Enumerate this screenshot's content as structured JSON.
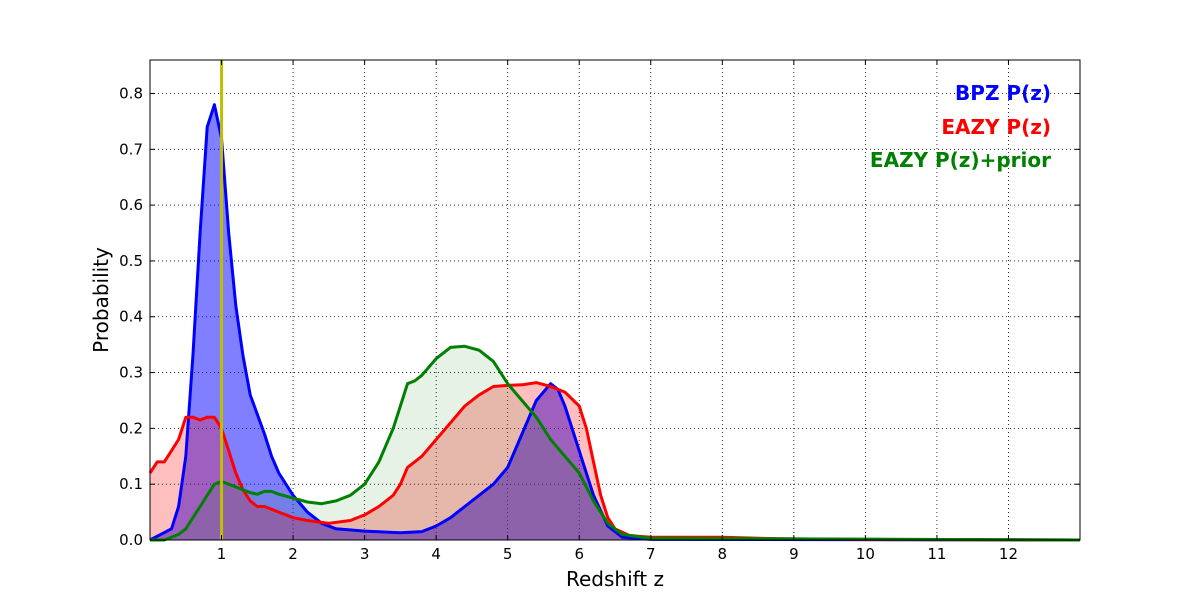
{
  "chart_data": {
    "type": "area",
    "title": "",
    "xlabel": "Redshift z",
    "ylabel": "Probability",
    "xlim": [
      0,
      13
    ],
    "ylim": [
      0,
      0.86
    ],
    "grid": true,
    "grid_style": "dotted",
    "legend_placement": "top-right",
    "x_ticks": [
      1,
      2,
      3,
      4,
      5,
      6,
      7,
      8,
      9,
      10,
      11,
      12
    ],
    "y_ticks": [
      0.0,
      0.1,
      0.2,
      0.3,
      0.4,
      0.5,
      0.6,
      0.7,
      0.8
    ],
    "x_tick_labels": [
      "1",
      "2",
      "3",
      "4",
      "5",
      "6",
      "7",
      "8",
      "9",
      "10",
      "11",
      "12"
    ],
    "y_tick_labels": [
      "0.0",
      "0.1",
      "0.2",
      "0.3",
      "0.4",
      "0.5",
      "0.6",
      "0.7",
      "0.8"
    ],
    "vertical_marker": {
      "x": 1.0,
      "color": "#bfbf00"
    },
    "series": [
      {
        "name": "BPZ P(z)",
        "color": "#0000ff",
        "fill_opacity": 0.5,
        "points": [
          [
            0,
            0
          ],
          [
            0.3,
            0.02
          ],
          [
            0.4,
            0.06
          ],
          [
            0.5,
            0.15
          ],
          [
            0.6,
            0.33
          ],
          [
            0.7,
            0.55
          ],
          [
            0.8,
            0.74
          ],
          [
            0.9,
            0.78
          ],
          [
            1.0,
            0.72
          ],
          [
            1.1,
            0.55
          ],
          [
            1.2,
            0.42
          ],
          [
            1.3,
            0.33
          ],
          [
            1.4,
            0.26
          ],
          [
            1.6,
            0.19
          ],
          [
            1.7,
            0.15
          ],
          [
            1.8,
            0.12
          ],
          [
            2.0,
            0.08
          ],
          [
            2.2,
            0.05
          ],
          [
            2.4,
            0.03
          ],
          [
            2.6,
            0.02
          ],
          [
            3.0,
            0.016
          ],
          [
            3.5,
            0.013
          ],
          [
            3.8,
            0.015
          ],
          [
            4.0,
            0.025
          ],
          [
            4.2,
            0.04
          ],
          [
            4.4,
            0.06
          ],
          [
            4.6,
            0.08
          ],
          [
            4.8,
            0.1
          ],
          [
            5.0,
            0.13
          ],
          [
            5.2,
            0.19
          ],
          [
            5.4,
            0.25
          ],
          [
            5.6,
            0.28
          ],
          [
            5.7,
            0.27
          ],
          [
            5.8,
            0.24
          ],
          [
            6.0,
            0.16
          ],
          [
            6.2,
            0.08
          ],
          [
            6.4,
            0.025
          ],
          [
            6.6,
            0.005
          ],
          [
            7.0,
            0.001
          ],
          [
            13,
            0
          ]
        ]
      },
      {
        "name": "EAZY P(z)",
        "color": "#ff0000",
        "fill_opacity": 0.25,
        "points": [
          [
            0,
            0.12
          ],
          [
            0.1,
            0.14
          ],
          [
            0.2,
            0.14
          ],
          [
            0.3,
            0.16
          ],
          [
            0.4,
            0.18
          ],
          [
            0.5,
            0.22
          ],
          [
            0.6,
            0.22
          ],
          [
            0.7,
            0.215
          ],
          [
            0.8,
            0.22
          ],
          [
            0.9,
            0.22
          ],
          [
            1.0,
            0.2
          ],
          [
            1.1,
            0.16
          ],
          [
            1.2,
            0.12
          ],
          [
            1.3,
            0.09
          ],
          [
            1.4,
            0.07
          ],
          [
            1.5,
            0.06
          ],
          [
            1.6,
            0.06
          ],
          [
            1.8,
            0.05
          ],
          [
            2.0,
            0.04
          ],
          [
            2.2,
            0.035
          ],
          [
            2.5,
            0.03
          ],
          [
            2.8,
            0.035
          ],
          [
            3.0,
            0.045
          ],
          [
            3.2,
            0.06
          ],
          [
            3.4,
            0.08
          ],
          [
            3.5,
            0.1
          ],
          [
            3.6,
            0.13
          ],
          [
            3.8,
            0.15
          ],
          [
            4.0,
            0.18
          ],
          [
            4.2,
            0.21
          ],
          [
            4.4,
            0.24
          ],
          [
            4.6,
            0.26
          ],
          [
            4.8,
            0.275
          ],
          [
            5.0,
            0.277
          ],
          [
            5.2,
            0.278
          ],
          [
            5.4,
            0.282
          ],
          [
            5.6,
            0.275
          ],
          [
            5.8,
            0.265
          ],
          [
            6.0,
            0.24
          ],
          [
            6.1,
            0.2
          ],
          [
            6.2,
            0.14
          ],
          [
            6.3,
            0.08
          ],
          [
            6.4,
            0.04
          ],
          [
            6.5,
            0.02
          ],
          [
            6.7,
            0.008
          ],
          [
            7.0,
            0.005
          ],
          [
            8.0,
            0.005
          ],
          [
            8.5,
            0.003
          ],
          [
            9.0,
            0.002
          ],
          [
            10,
            0.001
          ],
          [
            13,
            0
          ]
        ]
      },
      {
        "name": "EAZY P(z)+prior",
        "color": "#008000",
        "fill_opacity": 0.1,
        "points": [
          [
            0,
            0
          ],
          [
            0.2,
            0
          ],
          [
            0.4,
            0.01
          ],
          [
            0.5,
            0.02
          ],
          [
            0.6,
            0.04
          ],
          [
            0.7,
            0.06
          ],
          [
            0.8,
            0.08
          ],
          [
            0.9,
            0.1
          ],
          [
            1.0,
            0.105
          ],
          [
            1.1,
            0.1
          ],
          [
            1.2,
            0.095
          ],
          [
            1.3,
            0.09
          ],
          [
            1.4,
            0.085
          ],
          [
            1.5,
            0.082
          ],
          [
            1.6,
            0.087
          ],
          [
            1.7,
            0.087
          ],
          [
            1.8,
            0.082
          ],
          [
            2.0,
            0.075
          ],
          [
            2.2,
            0.068
          ],
          [
            2.4,
            0.065
          ],
          [
            2.6,
            0.07
          ],
          [
            2.8,
            0.08
          ],
          [
            3.0,
            0.1
          ],
          [
            3.2,
            0.14
          ],
          [
            3.4,
            0.2
          ],
          [
            3.5,
            0.24
          ],
          [
            3.6,
            0.28
          ],
          [
            3.7,
            0.285
          ],
          [
            3.8,
            0.295
          ],
          [
            4.0,
            0.325
          ],
          [
            4.2,
            0.345
          ],
          [
            4.4,
            0.347
          ],
          [
            4.6,
            0.34
          ],
          [
            4.8,
            0.32
          ],
          [
            5.0,
            0.28
          ],
          [
            5.2,
            0.25
          ],
          [
            5.4,
            0.22
          ],
          [
            5.6,
            0.18
          ],
          [
            5.8,
            0.15
          ],
          [
            6.0,
            0.12
          ],
          [
            6.2,
            0.07
          ],
          [
            6.4,
            0.03
          ],
          [
            6.6,
            0.01
          ],
          [
            7.0,
            0.003
          ],
          [
            13,
            0
          ]
        ]
      }
    ]
  }
}
